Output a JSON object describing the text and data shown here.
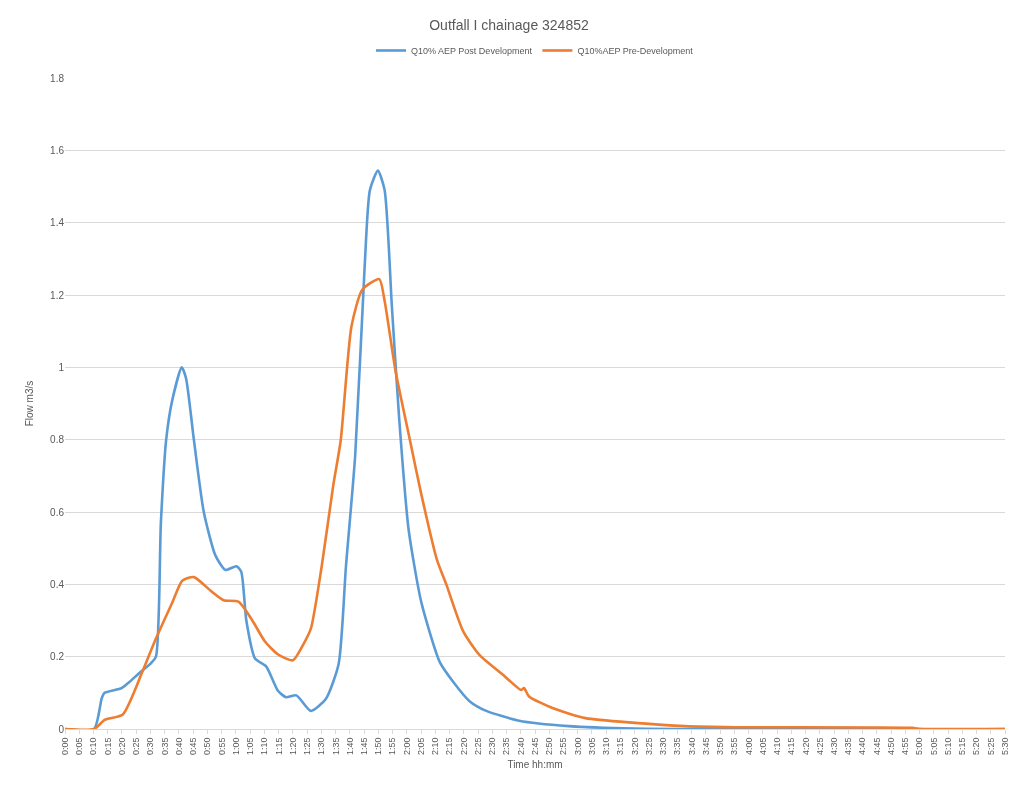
{
  "chart_data": {
    "type": "line",
    "title": "Outfall I chainage 324852",
    "xlabel": "Time hh:mm",
    "ylabel": "Flow m3/s",
    "xlim": [
      0,
      5.5
    ],
    "ylim": [
      0,
      1.8
    ],
    "yticks": [
      0,
      0.2,
      0.4,
      0.6,
      0.8,
      1,
      1.2,
      1.4,
      1.6,
      1.8
    ],
    "xticks": [
      {
        "value": 0,
        "label": "0:00"
      },
      {
        "value": 0.0833,
        "label": "0:05"
      },
      {
        "value": 0.1667,
        "label": "0:10"
      },
      {
        "value": 0.25,
        "label": "0:15"
      },
      {
        "value": 0.3333,
        "label": "0:20"
      },
      {
        "value": 0.4167,
        "label": "0:25"
      },
      {
        "value": 0.5,
        "label": "0:30"
      },
      {
        "value": 0.5833,
        "label": "0:35"
      },
      {
        "value": 0.6667,
        "label": "0:40"
      },
      {
        "value": 0.75,
        "label": "0:45"
      },
      {
        "value": 0.8333,
        "label": "0:50"
      },
      {
        "value": 0.9167,
        "label": "0:55"
      },
      {
        "value": 1,
        "label": "1:00"
      },
      {
        "value": 1.0833,
        "label": "1:05"
      },
      {
        "value": 1.1667,
        "label": "1:10"
      },
      {
        "value": 1.25,
        "label": "1:15"
      },
      {
        "value": 1.3333,
        "label": "1:20"
      },
      {
        "value": 1.4167,
        "label": "1:25"
      },
      {
        "value": 1.5,
        "label": "1:30"
      },
      {
        "value": 1.5833,
        "label": "1:35"
      },
      {
        "value": 1.6667,
        "label": "1:40"
      },
      {
        "value": 1.75,
        "label": "1:45"
      },
      {
        "value": 1.8333,
        "label": "1:50"
      },
      {
        "value": 1.9167,
        "label": "1:55"
      },
      {
        "value": 2,
        "label": "2:00"
      },
      {
        "value": 2.0833,
        "label": "2:05"
      },
      {
        "value": 2.1667,
        "label": "2:10"
      },
      {
        "value": 2.25,
        "label": "2:15"
      },
      {
        "value": 2.3333,
        "label": "2:20"
      },
      {
        "value": 2.4167,
        "label": "2:25"
      },
      {
        "value": 2.5,
        "label": "2:30"
      },
      {
        "value": 2.5833,
        "label": "2:35"
      },
      {
        "value": 2.6667,
        "label": "2:40"
      },
      {
        "value": 2.75,
        "label": "2:45"
      },
      {
        "value": 2.8333,
        "label": "2:50"
      },
      {
        "value": 2.9167,
        "label": "2:55"
      },
      {
        "value": 3,
        "label": "3:00"
      },
      {
        "value": 3.0833,
        "label": "3:05"
      },
      {
        "value": 3.1667,
        "label": "3:10"
      },
      {
        "value": 3.25,
        "label": "3:15"
      },
      {
        "value": 3.3333,
        "label": "3:20"
      },
      {
        "value": 3.4167,
        "label": "3:25"
      },
      {
        "value": 3.5,
        "label": "3:30"
      },
      {
        "value": 3.5833,
        "label": "3:35"
      },
      {
        "value": 3.6667,
        "label": "3:40"
      },
      {
        "value": 3.75,
        "label": "3:45"
      },
      {
        "value": 3.8333,
        "label": "3:50"
      },
      {
        "value": 3.9167,
        "label": "3:55"
      },
      {
        "value": 4,
        "label": "4:00"
      },
      {
        "value": 4.0833,
        "label": "4:05"
      },
      {
        "value": 4.1667,
        "label": "4:10"
      },
      {
        "value": 4.25,
        "label": "4:15"
      },
      {
        "value": 4.3333,
        "label": "4:20"
      },
      {
        "value": 4.4167,
        "label": "4:25"
      },
      {
        "value": 4.5,
        "label": "4:30"
      },
      {
        "value": 4.5833,
        "label": "4:35"
      },
      {
        "value": 4.6667,
        "label": "4:40"
      },
      {
        "value": 4.75,
        "label": "4:45"
      },
      {
        "value": 4.8333,
        "label": "4:50"
      },
      {
        "value": 4.9167,
        "label": "4:55"
      },
      {
        "value": 5,
        "label": "5:00"
      },
      {
        "value": 5.0833,
        "label": "5:05"
      },
      {
        "value": 5.1667,
        "label": "5:10"
      },
      {
        "value": 5.25,
        "label": "5:15"
      },
      {
        "value": 5.3333,
        "label": "5:20"
      },
      {
        "value": 5.4167,
        "label": "5:25"
      },
      {
        "value": 5.5,
        "label": "5:30"
      }
    ],
    "grid": "y",
    "legend": "top",
    "marker": "none",
    "line_style": "solid",
    "series": [
      {
        "name": "Q10% AEP Post Development",
        "color": "#5b9bd5",
        "x": [
          0,
          0.17,
          0.215,
          0.232,
          0.331,
          0.377,
          0.435,
          0.499,
          0.532,
          0.561,
          0.592,
          0.628,
          0.683,
          0.708,
          0.754,
          0.812,
          0.88,
          0.938,
          1.003,
          1.031,
          1.061,
          1.112,
          1.177,
          1.247,
          1.293,
          1.354,
          1.439,
          1.526,
          1.601,
          1.644,
          1.698,
          1.752,
          1.784,
          1.831,
          1.87,
          1.913,
          1.955,
          2.01,
          2.085,
          2.193,
          2.272,
          2.367,
          2.465,
          2.657,
          2.947,
          3.335,
          3.6,
          5.5
        ],
        "values": [
          0,
          0,
          0.085,
          0.1,
          0.113,
          0.13,
          0.155,
          0.18,
          0.2,
          0.57,
          0.8,
          0.91,
          1.0,
          0.97,
          0.8,
          0.6,
          0.48,
          0.44,
          0.45,
          0.435,
          0.3,
          0.195,
          0.173,
          0.105,
          0.088,
          0.093,
          0.05,
          0.083,
          0.18,
          0.45,
          0.757,
          1.266,
          1.49,
          1.544,
          1.49,
          1.165,
          0.86,
          0.553,
          0.35,
          0.185,
          0.13,
          0.077,
          0.05,
          0.023,
          0.008,
          0.001,
          0,
          0
        ]
      },
      {
        "name": "Q10%AEP Pre-Development",
        "color": "#ed7d31",
        "x": [
          0,
          0.17,
          0.232,
          0.338,
          0.454,
          0.532,
          0.628,
          0.686,
          0.754,
          0.858,
          0.928,
          1.015,
          1.09,
          1.17,
          1.247,
          1.333,
          1.398,
          1.439,
          1.502,
          1.57,
          1.613,
          1.676,
          1.74,
          1.839,
          1.87,
          1.934,
          2.019,
          2.082,
          2.175,
          2.233,
          2.33,
          2.425,
          2.562,
          2.668,
          2.686,
          2.715,
          2.852,
          3.045,
          3.335,
          3.625,
          3.915,
          4.959,
          5,
          5.5
        ],
        "values": [
          0,
          0,
          0.025,
          0.04,
          0.16,
          0.25,
          0.35,
          0.41,
          0.42,
          0.38,
          0.356,
          0.352,
          0.305,
          0.242,
          0.206,
          0.19,
          0.237,
          0.278,
          0.45,
          0.675,
          0.797,
          1.113,
          1.215,
          1.244,
          1.184,
          0.99,
          0.797,
          0.655,
          0.47,
          0.397,
          0.27,
          0.205,
          0.15,
          0.108,
          0.113,
          0.09,
          0.058,
          0.03,
          0.017,
          0.008,
          0.005,
          0.003,
          0,
          0
        ]
      }
    ]
  }
}
